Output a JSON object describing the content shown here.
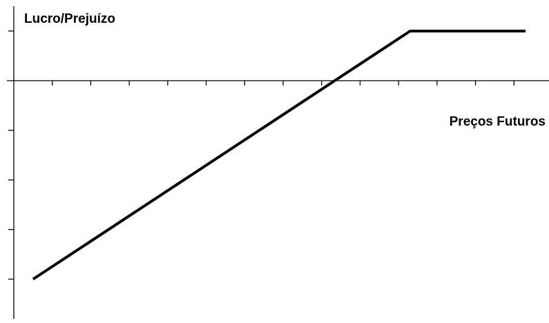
{
  "chart_data": {
    "type": "line",
    "title": "",
    "ylabel": "Lucro/Prejuízo",
    "xlabel": "Preços Futuros",
    "x_ticks": 14,
    "y_ticks": [
      -4,
      -3,
      -2,
      -1,
      1
    ],
    "xlim": [
      0,
      14
    ],
    "ylim": [
      -4.8,
      1.5
    ],
    "grid": false,
    "legend": "none",
    "series": [
      {
        "color": "#000000",
        "points": [
          {
            "x": 0.5,
            "y": -4
          },
          {
            "x": 10.3,
            "y": 1
          },
          {
            "x": 13.3,
            "y": 1
          }
        ]
      }
    ]
  }
}
